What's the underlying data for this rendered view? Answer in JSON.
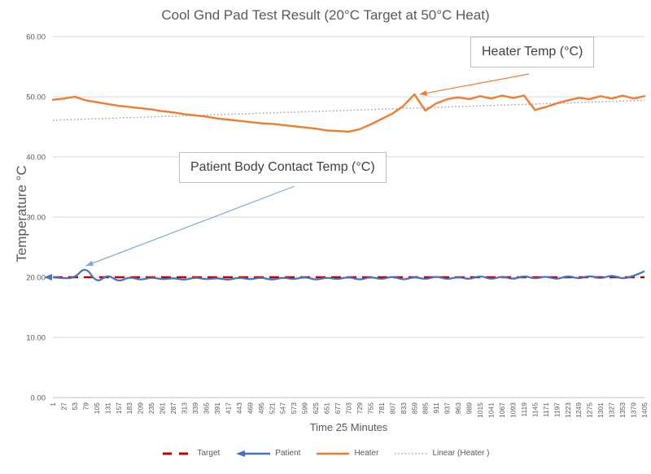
{
  "chart_data": {
    "type": "line",
    "title": "Cool Gnd Pad Test Result (20°C Target at 50°C Heat)",
    "xlabel": "Time 25 Minutes",
    "ylabel": "Temperature °C",
    "ylim": [
      0,
      60
    ],
    "y_ticks": [
      "0.00",
      "10.00",
      "20.00",
      "30.00",
      "40.00",
      "50.00",
      "60.00"
    ],
    "grid": "horizontal",
    "legend_position": "bottom",
    "categories": [
      1,
      27,
      53,
      79,
      105,
      131,
      157,
      183,
      209,
      235,
      261,
      287,
      313,
      339,
      365,
      391,
      417,
      443,
      469,
      495,
      521,
      547,
      573,
      599,
      625,
      651,
      677,
      703,
      729,
      755,
      781,
      807,
      833,
      859,
      885,
      911,
      937,
      963,
      989,
      1015,
      1041,
      1067,
      1093,
      1119,
      1145,
      1171,
      1197,
      1223,
      1249,
      1275,
      1301,
      1327,
      1353,
      1379,
      1405
    ],
    "series": [
      {
        "name": "Target",
        "color": "#C00000",
        "style": "dashed",
        "constant": 20.0
      },
      {
        "name": "Patient",
        "color": "#4472C4",
        "style": "solid-arrow-start",
        "values": [
          20.0,
          19.8,
          19.9,
          21.8,
          19.0,
          20.5,
          19.2,
          20.1,
          19.5,
          20.0,
          19.6,
          19.9,
          19.5,
          20.0,
          19.6,
          19.9,
          19.5,
          20.0,
          19.6,
          20.0,
          19.5,
          20.0,
          19.6,
          20.1,
          19.5,
          20.0,
          19.6,
          20.1,
          19.5,
          20.1,
          19.6,
          20.2,
          19.5,
          20.1,
          19.6,
          20.2,
          19.6,
          20.1,
          19.6,
          20.3,
          19.6,
          20.2,
          19.6,
          20.3,
          19.7,
          20.2,
          19.6,
          20.3,
          19.7,
          20.3,
          19.7,
          20.4,
          19.7,
          20.2,
          21.0
        ]
      },
      {
        "name": "Heater",
        "color": "#ED7D31",
        "style": "solid",
        "values": [
          49.5,
          49.7,
          50.0,
          49.4,
          49.1,
          48.8,
          48.5,
          48.3,
          48.1,
          47.9,
          47.6,
          47.4,
          47.1,
          46.9,
          46.7,
          46.4,
          46.2,
          46.0,
          45.8,
          45.6,
          45.5,
          45.3,
          45.1,
          44.9,
          44.7,
          44.4,
          44.3,
          44.2,
          44.6,
          45.4,
          46.3,
          47.2,
          48.5,
          50.4,
          47.7,
          48.9,
          49.6,
          49.9,
          49.6,
          50.1,
          49.7,
          50.2,
          49.8,
          50.2,
          47.8,
          48.3,
          48.9,
          49.4,
          49.8,
          49.6,
          50.1,
          49.7,
          50.2,
          49.7,
          50.1
        ]
      },
      {
        "name": "Linear (Heater )",
        "color": "#A6A6A6",
        "style": "dotted",
        "trend_start": 46.1,
        "trend_end": 49.4
      }
    ]
  },
  "annotations": [
    {
      "id": "heater",
      "text": "Heater Temp (°C)",
      "arrow_color": "#ED7D31",
      "points_to": {
        "t": 871,
        "v": 50.4
      }
    },
    {
      "id": "patient",
      "text": "Patient Body Contact Temp (°C)",
      "arrow_color": "#7FA8DC",
      "points_to": {
        "t": 79,
        "v": 21.9
      }
    }
  ]
}
